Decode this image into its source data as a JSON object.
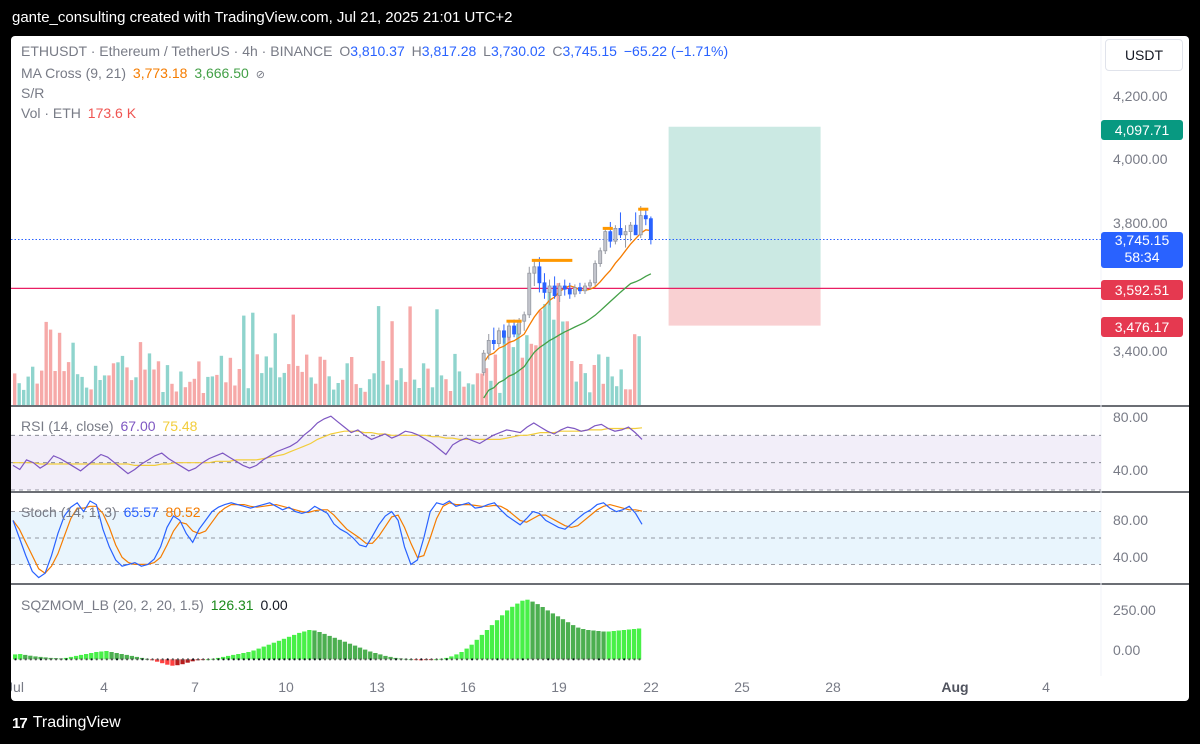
{
  "header": {
    "caption": "gante_consulting created with TradingView.com, Jul 21, 2025 21:01 UTC+2"
  },
  "footer": {
    "brand": "TradingView",
    "brand_mark": "17"
  },
  "toolbar": {
    "currency_button": "USDT"
  },
  "legend": {
    "symbol": "ETHUSDT · Ethereum / TetherUS · 4h · BINANCE",
    "o_label": "O",
    "o_value": "3,810.37",
    "h_label": "H",
    "h_value": "3,817.28",
    "l_label": "L",
    "l_value": "3,730.02",
    "c_label": "C",
    "c_value": "3,745.15",
    "change": "−65.22 (−1.71%)",
    "ma_label": "MA Cross (9, 21)",
    "ma_fast": "3,773.18",
    "ma_slow": "3,666.50",
    "ma_eye": "⊘",
    "sr_label": "S/R",
    "vol_label": "Vol · ETH",
    "vol_value": "173.6 K"
  },
  "price_tags": {
    "target": "4,097.71",
    "last": "3,745.15",
    "countdown": "58:34",
    "level": "3,592.51",
    "stop": "3,476.17"
  },
  "colors": {
    "up": "#26a69a",
    "down": "#ef5350",
    "candle_up_light": "#b2b5be",
    "candle_blue": "#2962ff",
    "ma_fast": "#f57c00",
    "ma_slow": "#43a047",
    "sr_line": "#e91e63",
    "target_zone": "#cbe9e3",
    "stop_zone": "#f9d0d2",
    "rsi": "#7e57c2",
    "rsi_ma": "#f2cd3b",
    "stoch_k": "#2962ff",
    "stoch_d": "#f57c00",
    "mom_bright_up": "#48f048",
    "mom_dark_up": "#4caf50",
    "mom_bright_down": "#ff4040",
    "mom_dark_down": "#b71c1c"
  },
  "panes": {
    "rsi": {
      "label": "RSI (14, close)",
      "value": "67.00",
      "ma_value": "75.48",
      "ticks": [
        "80.00",
        "40.00"
      ]
    },
    "stoch": {
      "label": "Stoch (14, 1, 3)",
      "k_value": "65.57",
      "d_value": "80.52",
      "ticks": [
        "80.00",
        "40.00"
      ]
    },
    "sqz": {
      "label": "SQZMOM_LB (20, 2, 20, 1.5)",
      "value": "126.31",
      "value2": "0.00",
      "ticks": [
        "250.00",
        "0.00"
      ]
    }
  },
  "chart_data": [
    {
      "type": "candlestick",
      "symbol": "ETHUSDT",
      "interval": "4h",
      "x_axis": {
        "labels": [
          "Jul",
          "4",
          "7",
          "10",
          "13",
          "16",
          "19",
          "22",
          "25",
          "28",
          "Aug",
          "4"
        ],
        "dates": [
          "2025-07-01",
          "2025-07-04",
          "2025-07-07",
          "2025-07-10",
          "2025-07-13",
          "2025-07-16",
          "2025-07-19",
          "2025-07-22",
          "2025-07-25",
          "2025-07-28",
          "2025-08-01",
          "2025-08-04"
        ]
      },
      "y_axis": {
        "ticks": [
          "4,200.00",
          "4,000.00",
          "3,800.00",
          "3,400.00"
        ],
        "tick_values": [
          4200,
          4000,
          3800,
          3400
        ]
      },
      "last_close": 3745.15,
      "open": 3810.37,
      "high": 3817.28,
      "low": 3730.02,
      "close": 3745.15,
      "sr_level": 3592.51,
      "position": {
        "type": "long",
        "entry": 3592.51,
        "target": 4097.71,
        "stop": 3476.17,
        "start": "2025-07-22T12:00",
        "end": "2025-07-27T12:00"
      },
      "visible_price_candles": [
        {
          "t": "2025-07-16T08:00",
          "o": 3330,
          "h": 3400,
          "l": 3320,
          "c": 3390
        },
        {
          "t": "2025-07-16T12:00",
          "o": 3390,
          "h": 3450,
          "l": 3370,
          "c": 3430
        },
        {
          "t": "2025-07-16T16:00",
          "o": 3430,
          "h": 3470,
          "l": 3400,
          "c": 3420
        },
        {
          "t": "2025-07-16T20:00",
          "o": 3420,
          "h": 3470,
          "l": 3410,
          "c": 3460
        },
        {
          "t": "2025-07-17T00:00",
          "o": 3460,
          "h": 3480,
          "l": 3420,
          "c": 3440
        },
        {
          "t": "2025-07-17T04:00",
          "o": 3440,
          "h": 3490,
          "l": 3430,
          "c": 3475
        },
        {
          "t": "2025-07-17T08:00",
          "o": 3475,
          "h": 3495,
          "l": 3440,
          "c": 3450
        },
        {
          "t": "2025-07-17T12:00",
          "o": 3450,
          "h": 3500,
          "l": 3445,
          "c": 3490
        },
        {
          "t": "2025-07-17T16:00",
          "o": 3490,
          "h": 3520,
          "l": 3460,
          "c": 3510
        },
        {
          "t": "2025-07-17T20:00",
          "o": 3510,
          "h": 3660,
          "l": 3500,
          "c": 3640
        },
        {
          "t": "2025-07-18T00:00",
          "o": 3640,
          "h": 3680,
          "l": 3600,
          "c": 3660
        },
        {
          "t": "2025-07-18T04:00",
          "o": 3660,
          "h": 3690,
          "l": 3580,
          "c": 3610
        },
        {
          "t": "2025-07-18T08:00",
          "o": 3610,
          "h": 3640,
          "l": 3560,
          "c": 3580
        },
        {
          "t": "2025-07-18T12:00",
          "o": 3580,
          "h": 3620,
          "l": 3540,
          "c": 3600
        },
        {
          "t": "2025-07-18T16:00",
          "o": 3600,
          "h": 3630,
          "l": 3560,
          "c": 3570
        },
        {
          "t": "2025-07-18T20:00",
          "o": 3570,
          "h": 3610,
          "l": 3550,
          "c": 3600
        },
        {
          "t": "2025-07-19T00:00",
          "o": 3600,
          "h": 3620,
          "l": 3570,
          "c": 3590
        },
        {
          "t": "2025-07-19T04:00",
          "o": 3590,
          "h": 3610,
          "l": 3560,
          "c": 3575
        },
        {
          "t": "2025-07-19T08:00",
          "o": 3575,
          "h": 3605,
          "l": 3565,
          "c": 3595
        },
        {
          "t": "2025-07-19T12:00",
          "o": 3595,
          "h": 3610,
          "l": 3575,
          "c": 3585
        },
        {
          "t": "2025-07-19T16:00",
          "o": 3585,
          "h": 3610,
          "l": 3575,
          "c": 3600
        },
        {
          "t": "2025-07-19T20:00",
          "o": 3600,
          "h": 3620,
          "l": 3590,
          "c": 3610
        },
        {
          "t": "2025-07-20T00:00",
          "o": 3610,
          "h": 3680,
          "l": 3600,
          "c": 3670
        },
        {
          "t": "2025-07-20T04:00",
          "o": 3670,
          "h": 3720,
          "l": 3660,
          "c": 3710
        },
        {
          "t": "2025-07-20T08:00",
          "o": 3710,
          "h": 3780,
          "l": 3700,
          "c": 3770
        },
        {
          "t": "2025-07-20T12:00",
          "o": 3770,
          "h": 3800,
          "l": 3720,
          "c": 3740
        },
        {
          "t": "2025-07-20T16:00",
          "o": 3740,
          "h": 3790,
          "l": 3730,
          "c": 3780
        },
        {
          "t": "2025-07-20T20:00",
          "o": 3780,
          "h": 3830,
          "l": 3750,
          "c": 3760
        },
        {
          "t": "2025-07-21T00:00",
          "o": 3760,
          "h": 3790,
          "l": 3720,
          "c": 3770
        },
        {
          "t": "2025-07-21T04:00",
          "o": 3770,
          "h": 3800,
          "l": 3740,
          "c": 3790
        },
        {
          "t": "2025-07-21T08:00",
          "o": 3790,
          "h": 3830,
          "l": 3760,
          "c": 3760
        },
        {
          "t": "2025-07-21T12:00",
          "o": 3760,
          "h": 3850,
          "l": 3750,
          "c": 3820
        },
        {
          "t": "2025-07-21T16:00",
          "o": 3820,
          "h": 3840,
          "l": 3790,
          "c": 3810
        },
        {
          "t": "2025-07-21T20:00",
          "o": 3810.37,
          "h": 3817.28,
          "l": 3730.02,
          "c": 3745.15
        }
      ]
    },
    {
      "type": "bar",
      "name": "Vol · ETH",
      "last_value": "173.6 K",
      "bar_count": 140
    },
    {
      "type": "line",
      "name": "RSI (14, close)",
      "ylim": [
        30,
        90
      ],
      "levels": [
        70,
        50,
        30
      ],
      "series": [
        {
          "name": "RSI",
          "values": [
            48,
            45,
            52,
            50,
            46,
            49,
            55,
            53,
            50,
            47,
            44,
            48,
            52,
            56,
            54,
            50,
            46,
            42,
            45,
            49,
            52,
            55,
            57,
            53,
            50,
            47,
            44,
            46,
            50,
            53,
            55,
            57,
            54,
            51,
            48,
            46,
            48,
            52,
            55,
            58,
            60,
            62,
            65,
            70,
            74,
            79,
            82,
            84,
            80,
            76,
            72,
            74,
            70,
            67,
            69,
            71,
            68,
            70,
            73,
            72,
            70,
            67,
            64,
            60,
            56,
            63,
            66,
            68,
            66,
            64,
            67,
            70,
            72,
            74,
            73,
            72,
            76,
            79,
            76,
            73,
            71,
            74,
            76,
            75,
            73,
            74,
            77,
            78,
            75,
            73,
            74,
            76,
            72,
            67
          ]
        },
        {
          "name": "RSI MA",
          "values": [
            50,
            50,
            50,
            50,
            49,
            49,
            49,
            49,
            49,
            49,
            49,
            49,
            49,
            49,
            49,
            49,
            49,
            49,
            48,
            48,
            48,
            48,
            49,
            49,
            50,
            50,
            50,
            50,
            50,
            50,
            51,
            51,
            51,
            52,
            52,
            52,
            52,
            53,
            54,
            55,
            56,
            58,
            60,
            62,
            64,
            67,
            69,
            71,
            72,
            73,
            73,
            73,
            72,
            72,
            71,
            71,
            70,
            70,
            70,
            70,
            70,
            70,
            69,
            69,
            68,
            68,
            67,
            67,
            67,
            67,
            67,
            67,
            67,
            68,
            69,
            70,
            70,
            71,
            72,
            72,
            72,
            73,
            73,
            73,
            73,
            74,
            74,
            74,
            75,
            75,
            75,
            75,
            75,
            75.48
          ]
        }
      ],
      "last": {
        "rsi": 67.0,
        "ma": 75.48
      }
    },
    {
      "type": "line",
      "name": "Stoch (14, 1, 3)",
      "ylim": [
        0,
        100
      ],
      "levels": [
        80,
        50,
        20
      ],
      "series": [
        {
          "name": "%K",
          "values": [
            70,
            50,
            30,
            12,
            5,
            10,
            30,
            55,
            75,
            85,
            90,
            80,
            92,
            88,
            60,
            40,
            25,
            18,
            20,
            22,
            18,
            20,
            26,
            40,
            62,
            75,
            70,
            55,
            45,
            60,
            70,
            80,
            85,
            88,
            90,
            88,
            86,
            84,
            86,
            88,
            90,
            86,
            82,
            85,
            80,
            78,
            80,
            86,
            82,
            78,
            66,
            60,
            56,
            50,
            42,
            40,
            52,
            65,
            75,
            80,
            70,
            40,
            20,
            25,
            50,
            80,
            90,
            88,
            92,
            86,
            88,
            90,
            84,
            85,
            88,
            90,
            82,
            75,
            70,
            65,
            72,
            80,
            78,
            70,
            66,
            62,
            60,
            66,
            72,
            78,
            82,
            88,
            90,
            84,
            80,
            82,
            86,
            78,
            65.57
          ]
        },
        {
          "name": "%D",
          "values": [
            70,
            60,
            45,
            30,
            15,
            10,
            18,
            32,
            52,
            72,
            84,
            84,
            86,
            86,
            78,
            62,
            42,
            28,
            22,
            20,
            20,
            20,
            22,
            28,
            42,
            58,
            68,
            66,
            58,
            55,
            58,
            68,
            78,
            84,
            88,
            88,
            88,
            86,
            85,
            86,
            87,
            88,
            86,
            84,
            82,
            80,
            79,
            81,
            82,
            82,
            76,
            68,
            60,
            55,
            50,
            44,
            44,
            52,
            63,
            74,
            76,
            62,
            44,
            28,
            30,
            50,
            72,
            86,
            90,
            88,
            88,
            88,
            87,
            86,
            86,
            87,
            86,
            82,
            76,
            70,
            68,
            72,
            76,
            76,
            72,
            68,
            64,
            62,
            64,
            70,
            76,
            82,
            86,
            88,
            86,
            84,
            82,
            82,
            80.52
          ]
        }
      ],
      "last": {
        "k": 65.57,
        "d": 80.52
      }
    },
    {
      "type": "bar",
      "name": "SQZMOM_LB (20, 2, 20, 1.5)",
      "ylim": [
        -60,
        300
      ],
      "last": {
        "value": 126.31,
        "value2": 0.0
      },
      "values": [
        20,
        22,
        18,
        15,
        12,
        10,
        8,
        6,
        5,
        4,
        6,
        10,
        14,
        18,
        22,
        26,
        30,
        32,
        34,
        30,
        26,
        22,
        18,
        14,
        10,
        6,
        2,
        -4,
        -10,
        -16,
        -22,
        -26,
        -24,
        -20,
        -14,
        -8,
        -4,
        -2,
        0,
        2,
        6,
        10,
        14,
        18,
        22,
        26,
        30,
        36,
        44,
        52,
        60,
        68,
        76,
        84,
        92,
        100,
        108,
        114,
        120,
        118,
        112,
        104,
        96,
        88,
        80,
        72,
        64,
        56,
        48,
        40,
        32,
        26,
        20,
        14,
        10,
        6,
        4,
        2,
        0,
        -2,
        -4,
        -3,
        -1,
        0,
        2,
        6,
        12,
        20,
        30,
        44,
        60,
        80,
        100,
        120,
        140,
        160,
        180,
        200,
        215,
        228,
        240,
        244,
        236,
        226,
        214,
        200,
        188,
        176,
        164,
        152,
        140,
        130,
        124,
        120,
        118,
        116,
        114,
        114,
        116,
        118,
        120,
        122,
        124,
        126.31
      ]
    }
  ]
}
